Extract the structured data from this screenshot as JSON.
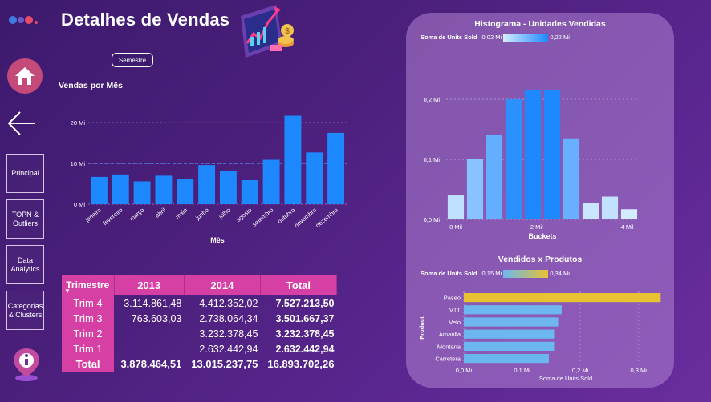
{
  "header": {
    "title": "Detalhes de Vendas",
    "semestre_button": "Semestre"
  },
  "nav": {
    "items": [
      {
        "label": "Principal"
      },
      {
        "label": "TOPN & Outliers"
      },
      {
        "label": "Data Analytics"
      },
      {
        "label": "Categorias & Clusters"
      }
    ]
  },
  "monthly_chart": {
    "title": "Vendas por Mês",
    "x_axis_title": "Mês",
    "y_ticks": [
      "20 Mi",
      "10 Mi",
      "0 Mi"
    ],
    "chart_data": {
      "type": "bar",
      "categories": [
        "janeiro",
        "fevereiro",
        "março",
        "abril",
        "maio",
        "junho",
        "julho",
        "agosto",
        "setembro",
        "outubro",
        "novembro",
        "dezembro"
      ],
      "values": [
        6.7,
        7.3,
        5.6,
        7.0,
        6.2,
        9.6,
        8.2,
        5.9,
        10.9,
        21.7,
        12.7,
        17.5
      ],
      "xlabel": "Mês",
      "ylabel": "",
      "ylim": [
        0,
        22
      ],
      "reference_line": 10
    }
  },
  "matrix": {
    "headers": [
      "Trimestre",
      "2013",
      "2014",
      "Total"
    ],
    "rows": [
      {
        "label": "Trim 4",
        "c2013": "3.114.861,48",
        "c2014": "4.412.352,02",
        "total": "7.527.213,50"
      },
      {
        "label": "Trim 3",
        "c2013": "763.603,03",
        "c2014": "2.738.064,34",
        "total": "3.501.667,37"
      },
      {
        "label": "Trim 2",
        "c2013": "",
        "c2014": "3.232.378,45",
        "total": "3.232.378,45"
      },
      {
        "label": "Trim 1",
        "c2013": "",
        "c2014": "2.632.442,94",
        "total": "2.632.442,94"
      }
    ],
    "total_row": {
      "label": "Total",
      "c2013": "3.878.464,51",
      "c2014": "13.015.237,75",
      "total": "16.893.702,26"
    }
  },
  "histogram": {
    "title": "Histograma - Unidades Vendidas",
    "legend_label": "Soma de Units Sold",
    "legend_min": "0,02 Mi",
    "legend_max": "0,22 Mi",
    "x_axis_title": "Buckets",
    "x_ticks": [
      "0 Mil",
      "2 Mil",
      "4 Mil"
    ],
    "y_ticks": [
      "0,2 Mi",
      "0,1 Mi",
      "0,0 Mi"
    ],
    "chart_data": {
      "type": "bar",
      "values": [
        0.04,
        0.1,
        0.14,
        0.2,
        0.215,
        0.215,
        0.135,
        0.028,
        0.038,
        0.017
      ],
      "xlabel": "Buckets",
      "ylabel": "",
      "ylim": [
        0,
        0.24
      ]
    }
  },
  "products": {
    "title": "Vendidos x Produtos",
    "legend_label": "Soma de Units Sold",
    "legend_min": "0,15 Mi",
    "legend_max": "0,34 Mi",
    "y_axis_title": "Product",
    "x_axis_title": "Soma de Units Sold",
    "x_ticks": [
      "0,0 Mi",
      "0,1 Mi",
      "0,2 Mi",
      "0,3 Mi"
    ],
    "chart_data": {
      "type": "bar",
      "categories": [
        "Paseo",
        "VTT",
        "Velo",
        "Amarilla",
        "Montana",
        "Carretera"
      ],
      "values": [
        0.338,
        0.168,
        0.162,
        0.155,
        0.155,
        0.146
      ],
      "xlabel": "Soma de Units Sold",
      "ylabel": "Product",
      "xlim": [
        0,
        0.35
      ]
    }
  },
  "colors": {
    "accent_pink": "#d63fa3",
    "bar_blue": "#1e88ff",
    "highlight_gold": "#e8c232"
  }
}
